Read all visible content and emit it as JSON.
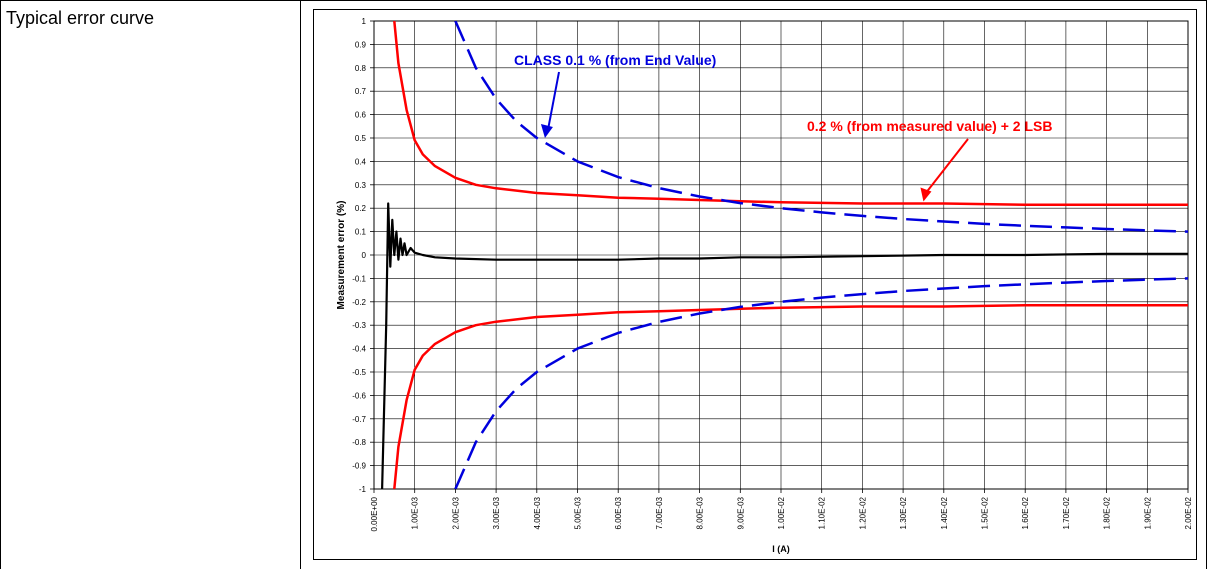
{
  "document": {
    "row_label": "Typical error curve"
  },
  "colors": {
    "limit_percent_of_value": "#ff0000",
    "limit_class": "#0000dd",
    "measured": "#000000",
    "grid": "#000000"
  },
  "chart_data": {
    "type": "line",
    "xlabel": "I (A)",
    "ylabel": "Measurement error (%)",
    "xlim": [
      0,
      0.02
    ],
    "ylim": [
      -1,
      1
    ],
    "grid": true,
    "x_ticks": [
      "0.00E+00",
      "1.00E-03",
      "2.00E-03",
      "3.00E-03",
      "4.00E-03",
      "5.00E-03",
      "6.00E-03",
      "7.00E-03",
      "8.00E-03",
      "9.00E-03",
      "1.00E-02",
      "1.10E-02",
      "1.20E-02",
      "1.30E-02",
      "1.40E-02",
      "1.50E-02",
      "1.60E-02",
      "1.70E-02",
      "1.80E-02",
      "1.90E-02",
      "2.00E-02"
    ],
    "y_ticks": [
      "1",
      "0.9",
      "0.8",
      "0.7",
      "0.6",
      "0.5",
      "0.4",
      "0.3",
      "0.2",
      "0.1",
      "0",
      "-0.1",
      "-0.2",
      "-0.3",
      "-0.4",
      "-0.5",
      "-0.6",
      "-0.7",
      "-0.8",
      "-0.9",
      "-1"
    ],
    "annotations": [
      {
        "text": "CLASS 0.1 % (from End Value)",
        "color": "#0000dd",
        "points_to": [
          0.0042,
          0.5
        ]
      },
      {
        "text": "0.2 % (from measured value) + 2 LSB",
        "color": "#ff0000",
        "points_to": [
          0.0135,
          0.22
        ]
      }
    ],
    "series": [
      {
        "style": "solid",
        "color": "#ff0000",
        "x": [
          0.0005,
          0.0006,
          0.0008,
          0.001,
          0.0012,
          0.0015,
          0.002,
          0.0025,
          0.003,
          0.004,
          0.005,
          0.006,
          0.007,
          0.008,
          0.009,
          0.01,
          0.012,
          0.014,
          0.016,
          0.018,
          0.02
        ],
        "values": [
          1.0,
          0.82,
          0.62,
          0.49,
          0.43,
          0.38,
          0.33,
          0.3,
          0.285,
          0.265,
          0.255,
          0.245,
          0.24,
          0.235,
          0.23,
          0.225,
          0.22,
          0.22,
          0.215,
          0.215,
          0.215
        ]
      },
      {
        "style": "solid",
        "color": "#ff0000",
        "x": [
          0.0005,
          0.0006,
          0.0008,
          0.001,
          0.0012,
          0.0015,
          0.002,
          0.0025,
          0.003,
          0.004,
          0.005,
          0.006,
          0.007,
          0.008,
          0.009,
          0.01,
          0.012,
          0.014,
          0.016,
          0.018,
          0.02
        ],
        "values": [
          -1.0,
          -0.82,
          -0.62,
          -0.49,
          -0.43,
          -0.38,
          -0.33,
          -0.3,
          -0.285,
          -0.265,
          -0.255,
          -0.245,
          -0.24,
          -0.235,
          -0.23,
          -0.225,
          -0.22,
          -0.22,
          -0.215,
          -0.215,
          -0.215
        ]
      },
      {
        "style": "dashed",
        "color": "#0000dd",
        "x": [
          0.002,
          0.0025,
          0.003,
          0.0035,
          0.004,
          0.005,
          0.006,
          0.007,
          0.008,
          0.009,
          0.01,
          0.011,
          0.012,
          0.013,
          0.014,
          0.015,
          0.016,
          0.017,
          0.018,
          0.019,
          0.02
        ],
        "values": [
          1.0,
          0.8,
          0.667,
          0.571,
          0.5,
          0.4,
          0.333,
          0.286,
          0.25,
          0.222,
          0.2,
          0.182,
          0.167,
          0.154,
          0.143,
          0.133,
          0.125,
          0.118,
          0.111,
          0.105,
          0.1
        ]
      },
      {
        "style": "dashed",
        "color": "#0000dd",
        "x": [
          0.002,
          0.0025,
          0.003,
          0.0035,
          0.004,
          0.005,
          0.006,
          0.007,
          0.008,
          0.009,
          0.01,
          0.011,
          0.012,
          0.013,
          0.014,
          0.015,
          0.016,
          0.017,
          0.018,
          0.019,
          0.02
        ],
        "values": [
          -1.0,
          -0.8,
          -0.667,
          -0.571,
          -0.5,
          -0.4,
          -0.333,
          -0.286,
          -0.25,
          -0.222,
          -0.2,
          -0.182,
          -0.167,
          -0.154,
          -0.143,
          -0.133,
          -0.125,
          -0.118,
          -0.111,
          -0.105,
          -0.1
        ]
      },
      {
        "style": "solid",
        "color": "#000000",
        "x": [
          0.0002,
          0.0003,
          0.00035,
          0.0004,
          0.00045,
          0.0005,
          0.00055,
          0.0006,
          0.00065,
          0.0007,
          0.00075,
          0.0008,
          0.0009,
          0.001,
          0.0012,
          0.0015,
          0.002,
          0.003,
          0.004,
          0.005,
          0.006,
          0.007,
          0.008,
          0.009,
          0.01,
          0.012,
          0.014,
          0.016,
          0.018,
          0.02
        ],
        "values": [
          -1.0,
          -0.3,
          0.22,
          -0.05,
          0.15,
          0.0,
          0.1,
          -0.02,
          0.07,
          0.0,
          0.05,
          0.0,
          0.03,
          0.01,
          0.0,
          -0.01,
          -0.015,
          -0.02,
          -0.02,
          -0.02,
          -0.02,
          -0.015,
          -0.015,
          -0.01,
          -0.01,
          -0.005,
          0.0,
          0.0,
          0.005,
          0.005
        ]
      }
    ]
  }
}
